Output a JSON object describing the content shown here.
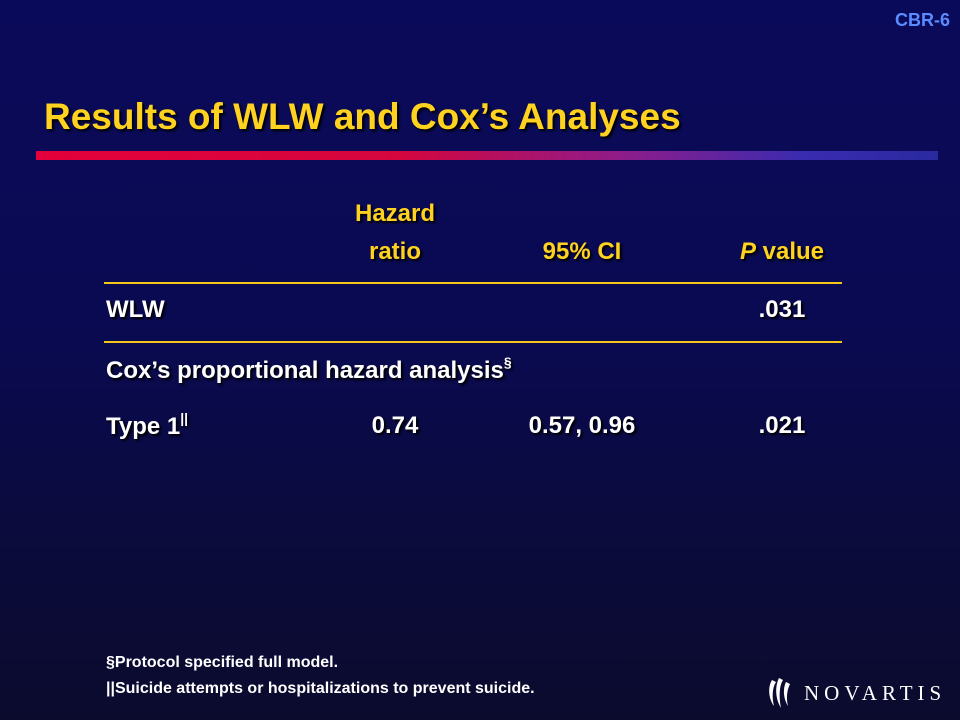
{
  "slide_id": "CBR-6",
  "side_note": "",
  "title": "Results of WLW and Cox’s Analyses",
  "table": {
    "headers": {
      "hazard_line1": "Hazard",
      "hazard_line2": "ratio",
      "ci": "95% CI",
      "p_italic": "P",
      "p_rest": " value"
    },
    "rows": [
      {
        "label": "WLW",
        "sup": "",
        "hr": "",
        "ci": "",
        "p": ".031"
      },
      {
        "label": "Cox’s proportional hazard analysis",
        "sup": "§",
        "hr": "",
        "ci": "",
        "p": ""
      },
      {
        "label": "Type 1",
        "sup": "||",
        "hr": "0.74",
        "ci": "0.57, 0.96",
        "p": ".021"
      }
    ]
  },
  "footnotes": [
    "§Protocol specified full model.",
    "||Suicide attempts or hospitalizations to prevent suicide."
  ],
  "logo": {
    "text": "NOVARTIS",
    "icon": "novartis-flame-icon"
  },
  "colors": {
    "title": "#ffd21f",
    "slide_id": "#5a8cff",
    "rule": "#f5c518"
  }
}
